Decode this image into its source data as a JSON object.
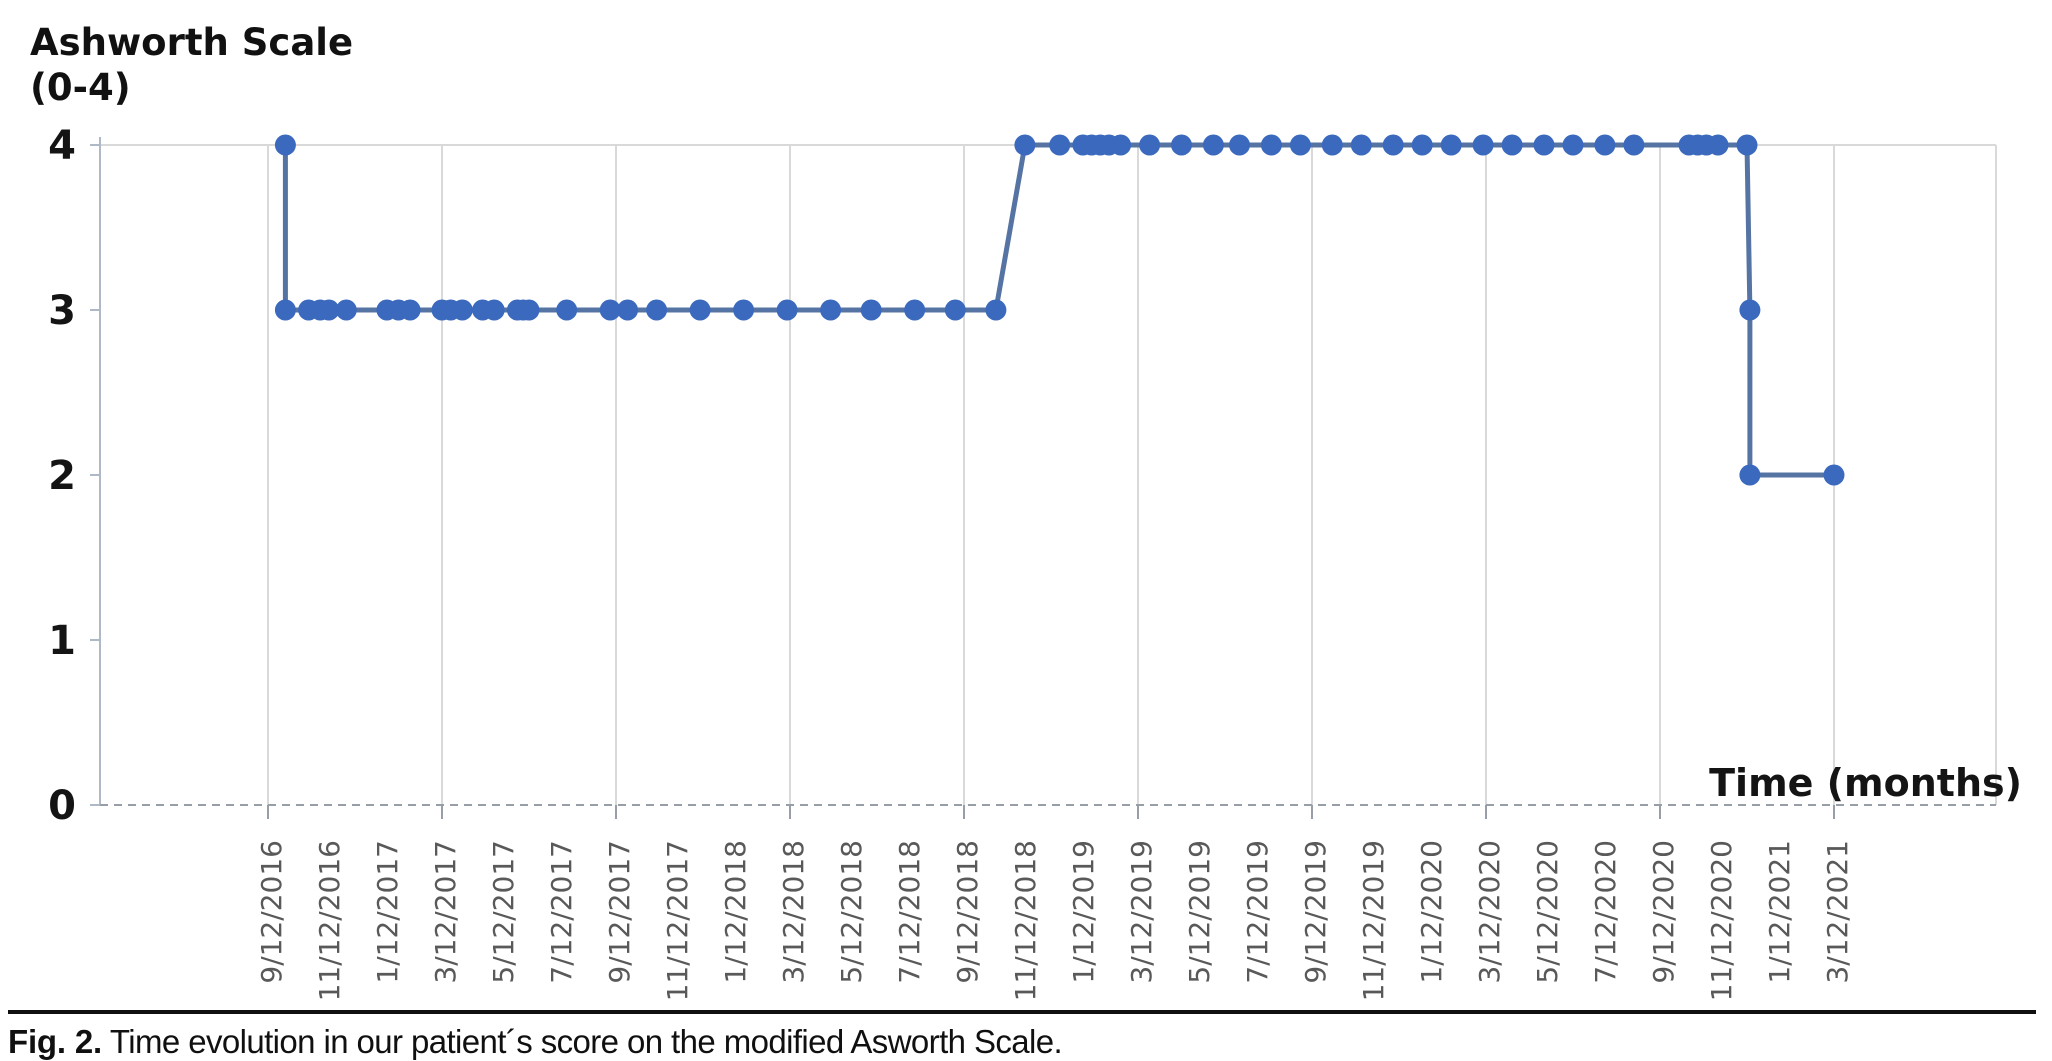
{
  "figure": {
    "y_axis_title_line1": "Ashworth Scale",
    "y_axis_title_line2": "(0-4)",
    "x_axis_title": "Time (months)",
    "caption_label": "Fig. 2.",
    "caption_text": " Time evolution in our patient´s score on the modified Asworth Scale."
  },
  "chart_data": {
    "type": "line",
    "title": "Ashworth Scale (0-4)",
    "xlabel": "Time (months)",
    "ylabel": "Ashworth Scale (0-4)",
    "ylim": [
      0,
      4
    ],
    "y_ticks": [
      0,
      1,
      2,
      3,
      4
    ],
    "x_axis_note": "x in months since first visit (9/12/2016); date tick labels every 2 months, rotated 90° counter-clockwise",
    "x_range_months": [
      0,
      54
    ],
    "x_tick_step_months": 2,
    "x_tick_labels": [
      "9/12/2016",
      "11/12/2016",
      "1/12/2017",
      "3/12/2017",
      "5/12/2017",
      "7/12/2017",
      "9/12/2017",
      "11/12/2017",
      "1/12/2018",
      "3/12/2018",
      "5/12/2018",
      "7/12/2018",
      "9/12/2018",
      "11/12/2018",
      "1/12/2019",
      "3/12/2019",
      "5/12/2019",
      "7/12/2019",
      "9/12/2019",
      "11/12/2019",
      "1/12/2020",
      "3/12/2020",
      "5/12/2020",
      "7/12/2020",
      "9/12/2020",
      "11/12/2020",
      "1/12/2021",
      "3/12/2021"
    ],
    "grid": {
      "vertical_gridlines_every_months": 6,
      "horizontal_gridline_at_y": 4,
      "dashed_baseline_at_y": 0
    },
    "legend": "none",
    "point_format": "[months_from_start, ashworth_score]",
    "series": [
      {
        "name": "Modified Ashworth Scale score",
        "points": [
          [
            0.6,
            4
          ],
          [
            0.6,
            3
          ],
          [
            1.4,
            3
          ],
          [
            1.8,
            3
          ],
          [
            2.1,
            3
          ],
          [
            2.7,
            3
          ],
          [
            4.1,
            3
          ],
          [
            4.5,
            3
          ],
          [
            4.9,
            3
          ],
          [
            6.0,
            3
          ],
          [
            6.3,
            3
          ],
          [
            6.7,
            3
          ],
          [
            7.4,
            3
          ],
          [
            7.8,
            3
          ],
          [
            8.6,
            3
          ],
          [
            8.8,
            3
          ],
          [
            9.0,
            3
          ],
          [
            10.3,
            3
          ],
          [
            11.8,
            3
          ],
          [
            12.4,
            3
          ],
          [
            13.4,
            3
          ],
          [
            14.9,
            3
          ],
          [
            16.4,
            3
          ],
          [
            17.9,
            3
          ],
          [
            19.4,
            3
          ],
          [
            20.8,
            3
          ],
          [
            22.3,
            3
          ],
          [
            23.7,
            3
          ],
          [
            25.1,
            3
          ],
          [
            26.1,
            4
          ],
          [
            27.3,
            4
          ],
          [
            28.1,
            4
          ],
          [
            28.4,
            4
          ],
          [
            28.7,
            4
          ],
          [
            29.0,
            4
          ],
          [
            29.4,
            4
          ],
          [
            30.4,
            4
          ],
          [
            31.5,
            4
          ],
          [
            32.6,
            4
          ],
          [
            33.5,
            4
          ],
          [
            34.6,
            4
          ],
          [
            35.6,
            4
          ],
          [
            36.7,
            4
          ],
          [
            37.7,
            4
          ],
          [
            38.8,
            4
          ],
          [
            39.8,
            4
          ],
          [
            40.8,
            4
          ],
          [
            41.9,
            4
          ],
          [
            42.9,
            4
          ],
          [
            44.0,
            4
          ],
          [
            45.0,
            4
          ],
          [
            46.1,
            4
          ],
          [
            47.1,
            4
          ],
          [
            49.0,
            4
          ],
          [
            49.3,
            4
          ],
          [
            49.6,
            4
          ],
          [
            50.0,
            4
          ],
          [
            51.0,
            4
          ],
          [
            51.1,
            3
          ],
          [
            51.1,
            2
          ],
          [
            54.0,
            2
          ]
        ]
      }
    ]
  },
  "style": {
    "marker_color": "#3b69bd",
    "line_color": "#5674a3",
    "gridline_color": "#d9d9d9",
    "y_axis_color": "#aeb8c6",
    "baseline_color": "#979ea8",
    "x_tick_label_color": "#595959",
    "text_color": "#141414"
  }
}
